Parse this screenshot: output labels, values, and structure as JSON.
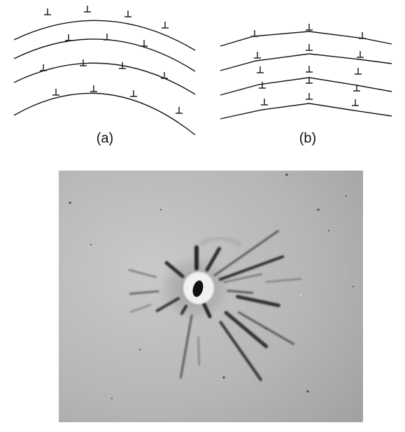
{
  "figure": {
    "panel_a": {
      "label": "(a)",
      "symbol": "⊥",
      "arc_count": 4,
      "dislocations_per_arc": [
        4,
        3,
        4,
        4
      ]
    },
    "panel_b": {
      "label": "(b)",
      "symbol": "⊥",
      "polyline_count": 4,
      "dislocation_columns": 3
    },
    "photo": {
      "kind": "grayscale Laue X-ray diffraction photograph",
      "colors": {
        "background": "#b7b7b7",
        "center_halo": "#e9e9e9",
        "spots": "#1c1c1c"
      }
    }
  }
}
